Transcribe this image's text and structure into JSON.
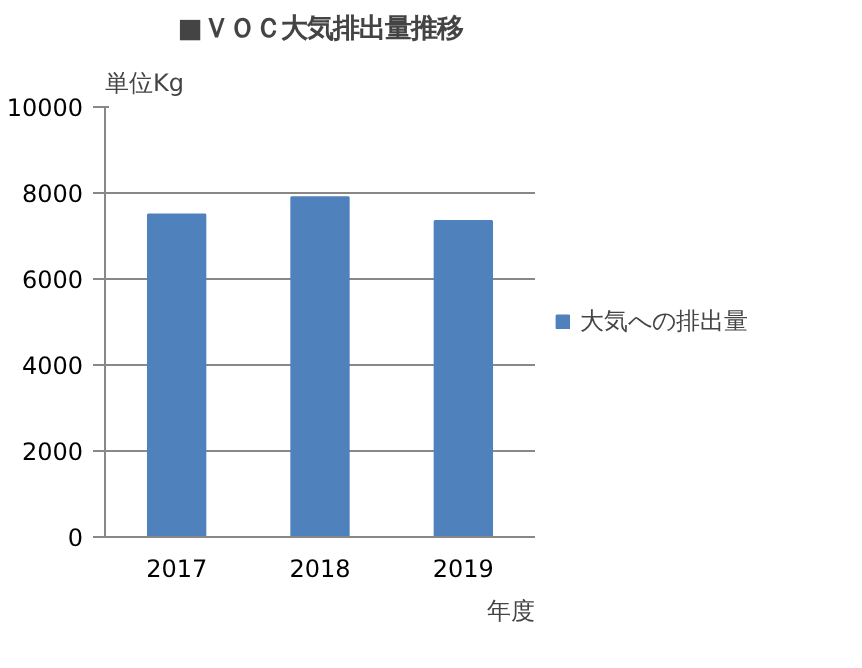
{
  "chart_data": {
    "type": "bar",
    "title": "■ＶＯＣ大気排出量推移",
    "xlabel": "年度",
    "annotations": [
      "単位Kg"
    ],
    "categories": [
      "2017",
      "2018",
      "2019"
    ],
    "series": [
      {
        "name": "大気への排出量",
        "color": "#4f81bd",
        "values": [
          7500,
          7900,
          7350
        ]
      }
    ],
    "ylim": [
      0,
      10000
    ],
    "yticks": [
      0,
      2000,
      4000,
      6000,
      8000,
      10000
    ],
    "grid": "y",
    "legend": "right"
  }
}
